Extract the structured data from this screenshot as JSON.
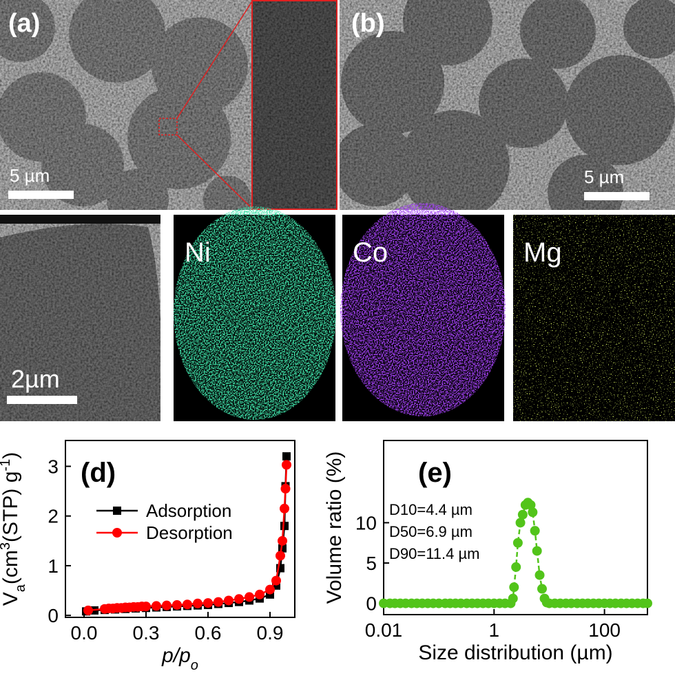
{
  "images": [
    {
      "label": "(a)",
      "scale_bar": "5 µm"
    },
    {
      "label": "(b)",
      "scale_bar": "5 µm"
    },
    {
      "scale_bar": "2µm"
    },
    {
      "label": "Ni",
      "color": "#3fe0a8"
    },
    {
      "label": "Co",
      "color": "#a040f0"
    },
    {
      "label": "Mg",
      "color": "#d8f060"
    }
  ],
  "chart_data": [
    {
      "type": "line",
      "panel_label": "(d)",
      "ylabel": [
        "V",
        "a",
        "(cm",
        "3",
        "(STP) g",
        "-1",
        ")"
      ],
      "xlabel": [
        "p",
        "/",
        "p",
        "o"
      ],
      "xlim": [
        -0.09,
        1.02
      ],
      "ylim": [
        -0.04,
        3.52
      ],
      "xticks": [
        {
          "value": 0,
          "label": "0.0"
        },
        0.3,
        0.6,
        0.9
      ],
      "yticks": [
        0,
        1,
        2,
        3
      ],
      "legend": "upper left",
      "series": [
        {
          "name": "Adsorption",
          "color": "#000000",
          "marker": "square",
          "x": [
            0.01,
            0.05,
            0.1,
            0.15,
            0.2,
            0.25,
            0.3,
            0.35,
            0.4,
            0.45,
            0.5,
            0.55,
            0.6,
            0.65,
            0.7,
            0.75,
            0.8,
            0.85,
            0.9,
            0.93,
            0.95,
            0.96,
            0.97,
            0.975,
            0.98
          ],
          "values": [
            0.08,
            0.1,
            0.11,
            0.12,
            0.13,
            0.14,
            0.15,
            0.16,
            0.17,
            0.18,
            0.19,
            0.2,
            0.21,
            0.23,
            0.25,
            0.27,
            0.3,
            0.34,
            0.42,
            0.6,
            0.95,
            1.35,
            1.8,
            2.6,
            3.2
          ]
        },
        {
          "name": "Desorption",
          "color": "#ff0000",
          "marker": "circle",
          "x": [
            0.02,
            0.1,
            0.12,
            0.14,
            0.16,
            0.18,
            0.2,
            0.22,
            0.24,
            0.26,
            0.28,
            0.3,
            0.35,
            0.4,
            0.45,
            0.5,
            0.55,
            0.6,
            0.65,
            0.7,
            0.75,
            0.8,
            0.85,
            0.9,
            0.93,
            0.95,
            0.96,
            0.97,
            0.975,
            0.98
          ],
          "values": [
            0.1,
            0.13,
            0.14,
            0.14,
            0.15,
            0.15,
            0.16,
            0.16,
            0.17,
            0.17,
            0.18,
            0.18,
            0.19,
            0.2,
            0.21,
            0.22,
            0.24,
            0.25,
            0.27,
            0.3,
            0.33,
            0.37,
            0.42,
            0.52,
            0.7,
            1.2,
            1.5,
            2.15,
            2.55,
            3.03
          ]
        }
      ]
    },
    {
      "type": "line",
      "panel_label": "(e)",
      "ylabel": [
        "Volume ratio (%)"
      ],
      "xlabel": [
        "Size distribution (µm)"
      ],
      "xscale": "log",
      "xlim": [
        0.01,
        600
      ],
      "ylim": [
        -1.4,
        20.2
      ],
      "xticks": [
        0.01,
        1,
        100
      ],
      "yticks": [
        0,
        5,
        10
      ],
      "annotations": [
        "D10=4.4 µm",
        "D50=6.9 µm",
        "D90=11.4 µm"
      ],
      "series": [
        {
          "color": "#52c41a",
          "marker": "circle",
          "dashed": true,
          "x": [
            0.01,
            0.013,
            0.016,
            0.02,
            0.025,
            0.032,
            0.04,
            0.05,
            0.063,
            0.079,
            0.1,
            0.13,
            0.16,
            0.2,
            0.25,
            0.32,
            0.4,
            0.5,
            0.63,
            0.79,
            1,
            1.26,
            1.58,
            2.0,
            2.2,
            2.3,
            2.5,
            2.7,
            3.0,
            3.3,
            3.7,
            4.1,
            4.6,
            5.0,
            5.5,
            6.0,
            6.7,
            7.4,
            8.2,
            9.0,
            10,
            12.6,
            15.8,
            20,
            25,
            32,
            40,
            50,
            63,
            79,
            100,
            126,
            158,
            200,
            251,
            316,
            398,
            501,
            600
          ],
          "values": [
            0,
            0,
            0,
            0,
            0,
            0,
            0,
            0,
            0,
            0,
            0,
            0,
            0,
            0,
            0,
            0,
            0,
            0,
            0,
            0,
            0,
            0,
            0,
            0,
            0.6,
            2,
            4.5,
            7.5,
            10,
            11,
            12.2,
            12.5,
            12.2,
            11.3,
            9,
            6.5,
            3.5,
            1.8,
            0.6,
            0.1,
            0,
            0,
            0,
            0,
            0,
            0,
            0,
            0,
            0,
            0,
            0,
            0,
            0,
            0,
            0,
            0,
            0,
            0,
            0
          ]
        }
      ]
    }
  ]
}
